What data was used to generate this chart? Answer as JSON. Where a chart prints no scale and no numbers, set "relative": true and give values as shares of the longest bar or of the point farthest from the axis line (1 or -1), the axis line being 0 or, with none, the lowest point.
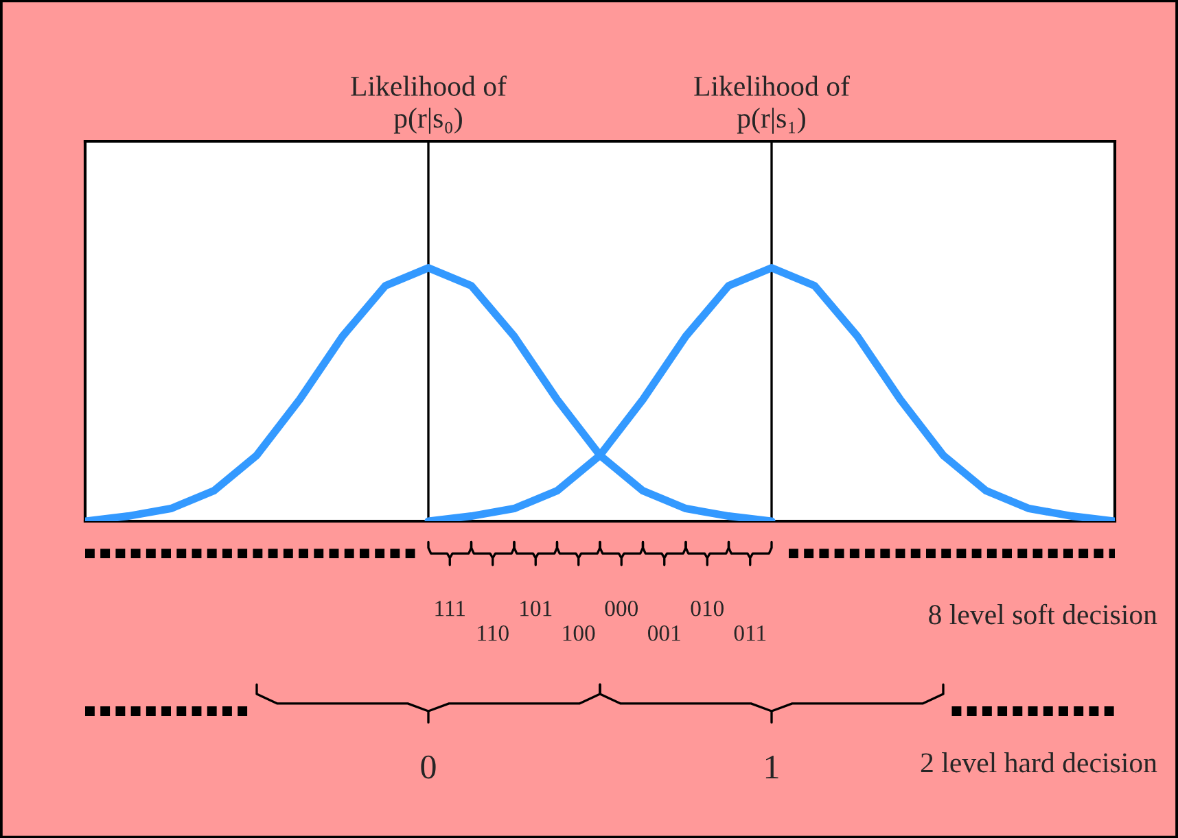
{
  "chart_data": {
    "type": "line",
    "relative": true,
    "grid": false,
    "categories": [
      null,
      null,
      null,
      null,
      null,
      null,
      null,
      null,
      null,
      null,
      null,
      null,
      null,
      null,
      null,
      null,
      null,
      null,
      null,
      null,
      null,
      null,
      null,
      null,
      null
    ],
    "series": [
      {
        "color": "#3399ff",
        "values": [
          0,
          0.02,
          0.05,
          0.12,
          0.26,
          0.48,
          0.73,
          0.93,
          1,
          0.93,
          0.73,
          0.48,
          0.26,
          0.12,
          0.05,
          0.02,
          0,
          null,
          null,
          null,
          null,
          null,
          null,
          null,
          null
        ]
      },
      {
        "color": "#3399ff",
        "values": [
          null,
          null,
          null,
          null,
          null,
          null,
          null,
          null,
          0,
          0.02,
          0.05,
          0.12,
          0.26,
          0.48,
          0.73,
          0.93,
          1,
          0.93,
          0.73,
          0.48,
          0.26,
          0.12,
          0.05,
          0.02,
          0
        ]
      }
    ],
    "annotations": [
      "Likelihood of\np(r|s₀)",
      "Likelihood of\np(r|s₁)",
      "111",
      "110",
      "101",
      "100",
      "000",
      "001",
      "010",
      "011",
      "0",
      "1",
      "8 level soft decision",
      "2 level hard decision"
    ]
  }
}
